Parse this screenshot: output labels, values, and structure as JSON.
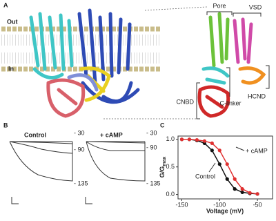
{
  "panel_a": {
    "label": "A",
    "membrane_labels": [
      "Out",
      "In"
    ],
    "domains": [
      "Pore",
      "VSD",
      "HCND",
      "CNBD",
      "C-linker"
    ]
  },
  "panel_b": {
    "label": "B",
    "conditions": [
      "Control",
      "+ cAMP"
    ],
    "voltages": [
      "- 30",
      "- 90",
      "- 135"
    ]
  },
  "chart_data": {
    "type": "line",
    "label": "C",
    "x_label": "Voltage (mV)",
    "y_label": "G/G",
    "y_label_sub": "max",
    "xlim": [
      -155,
      -30
    ],
    "ylim": [
      -0.08,
      1.06
    ],
    "xticks": [
      -150,
      -100,
      -50
    ],
    "yticks": [
      {
        "value": 0,
        "label": "0.0"
      },
      {
        "value": 0.5,
        "label": "0.5"
      },
      {
        "value": 1,
        "label": "1.0"
      }
    ],
    "x": [
      -150,
      -140,
      -130,
      -120,
      -110,
      -100,
      -90,
      -80,
      -70,
      -60,
      -50
    ],
    "series": [
      {
        "name": "Control",
        "color": "#111111",
        "values": [
          1.0,
          1.0,
          0.98,
          0.93,
          0.8,
          0.55,
          0.28,
          0.1,
          0.04,
          0.02,
          0.01
        ]
      },
      {
        "name": "+ cAMP",
        "color": "#e03030",
        "values": [
          1.0,
          1.0,
          0.99,
          0.97,
          0.93,
          0.8,
          0.55,
          0.28,
          0.1,
          0.03,
          0.01
        ]
      }
    ]
  }
}
